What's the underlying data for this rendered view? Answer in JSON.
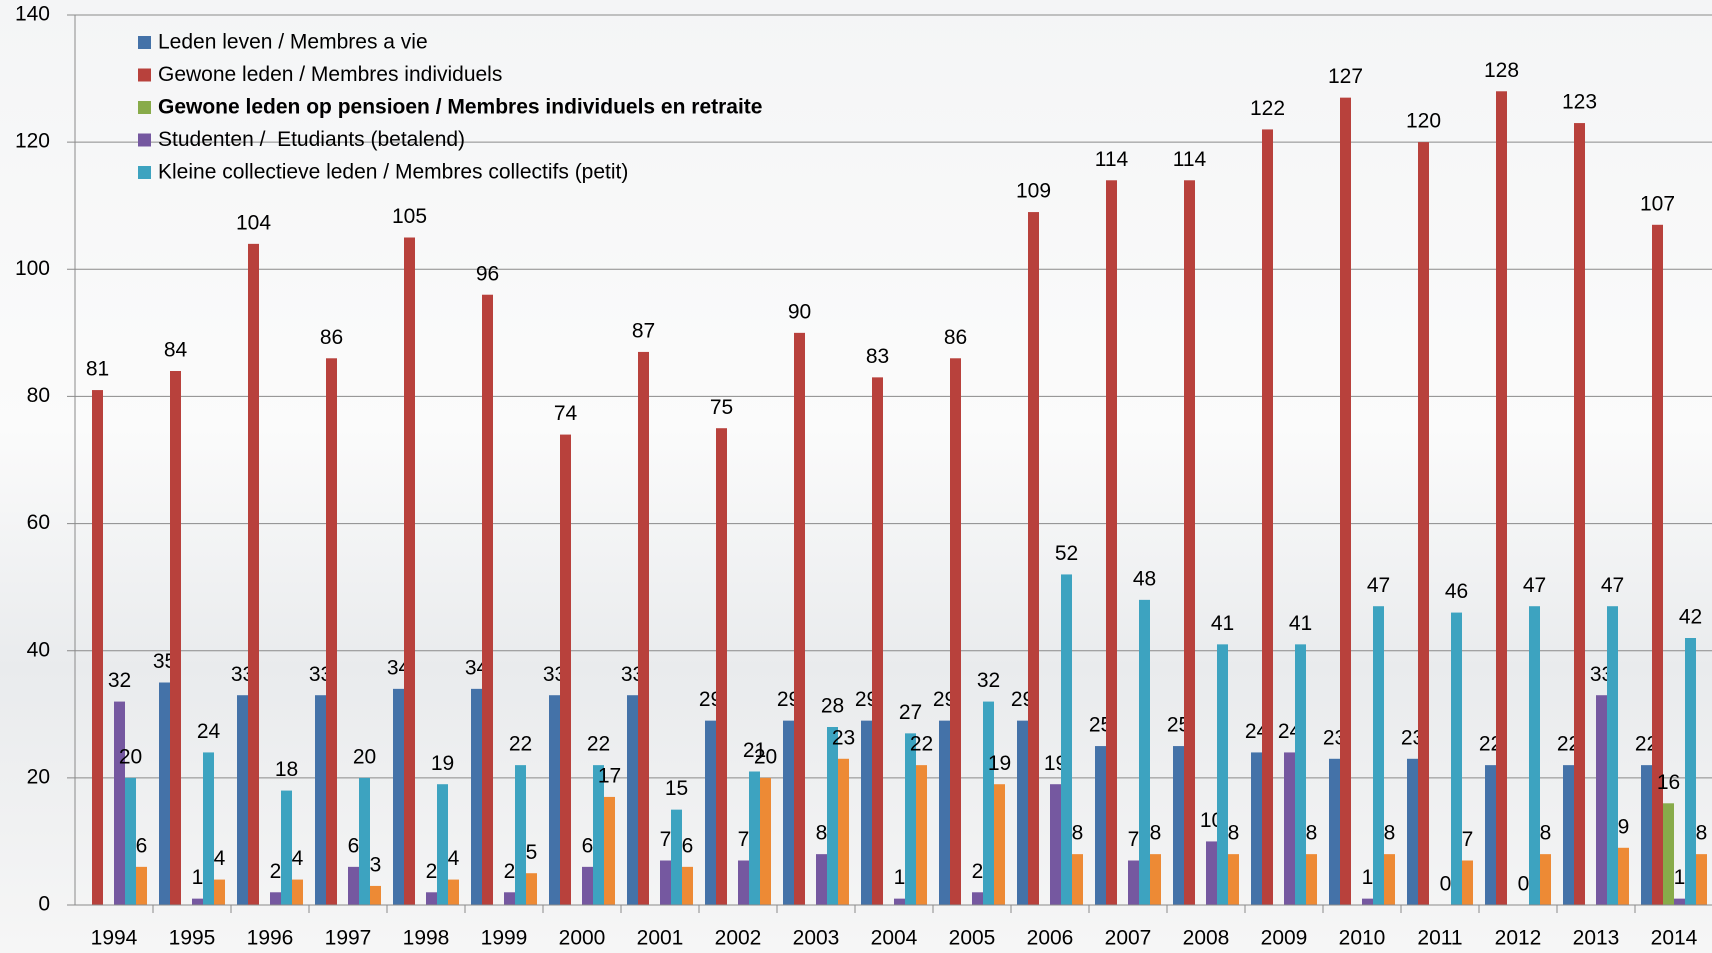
{
  "chart_data": {
    "type": "bar",
    "categories": [
      "1994",
      "1995",
      "1996",
      "1997",
      "1998",
      "1999",
      "2000",
      "2001",
      "2002",
      "2003",
      "2004",
      "2005",
      "2006",
      "2007",
      "2008",
      "2009",
      "2010",
      "2011",
      "2012",
      "2013",
      "2014"
    ],
    "series": [
      {
        "name": "Leden leven / Membres a vie",
        "color": "#4472a8",
        "values": [
          null,
          35,
          33,
          33,
          34,
          34,
          33,
          33,
          29,
          29,
          29,
          29,
          29,
          25,
          25,
          24,
          23,
          23,
          22,
          22,
          22
        ]
      },
      {
        "name": "Gewone leden / Membres individuels",
        "color": "#b8413c",
        "values": [
          81,
          84,
          104,
          86,
          105,
          96,
          74,
          87,
          75,
          90,
          83,
          86,
          109,
          114,
          114,
          122,
          127,
          120,
          128,
          123,
          107
        ]
      },
      {
        "name": "Gewone leden op pensioen / Membres individuels en retraite",
        "color": "#88ab4a",
        "bold": true,
        "values": [
          null,
          null,
          null,
          null,
          null,
          null,
          null,
          null,
          null,
          null,
          null,
          null,
          null,
          null,
          null,
          null,
          null,
          null,
          null,
          null,
          16
        ]
      },
      {
        "name": "Studenten /  Etudiants (betalend)",
        "color": "#7558a0",
        "values": [
          32,
          1,
          2,
          6,
          2,
          2,
          6,
          7,
          7,
          8,
          1,
          2,
          19,
          7,
          10,
          24,
          1,
          0,
          0,
          33,
          1
        ]
      },
      {
        "name": "Kleine collectieve leden / Membres collectifs (petit)",
        "color": "#3da3c0",
        "values": [
          20,
          24,
          18,
          20,
          19,
          22,
          22,
          15,
          21,
          28,
          27,
          32,
          52,
          48,
          41,
          41,
          47,
          46,
          47,
          47,
          42
        ]
      },
      {
        "color": "#ed8a35",
        "values": [
          6,
          4,
          4,
          3,
          4,
          5,
          17,
          6,
          20,
          23,
          22,
          19,
          8,
          8,
          8,
          8,
          8,
          7,
          8,
          9,
          8
        ]
      }
    ],
    "ylim": [
      0,
      140
    ],
    "yticks": [
      0,
      20,
      40,
      60,
      80,
      100,
      120,
      140
    ],
    "grid": true
  }
}
